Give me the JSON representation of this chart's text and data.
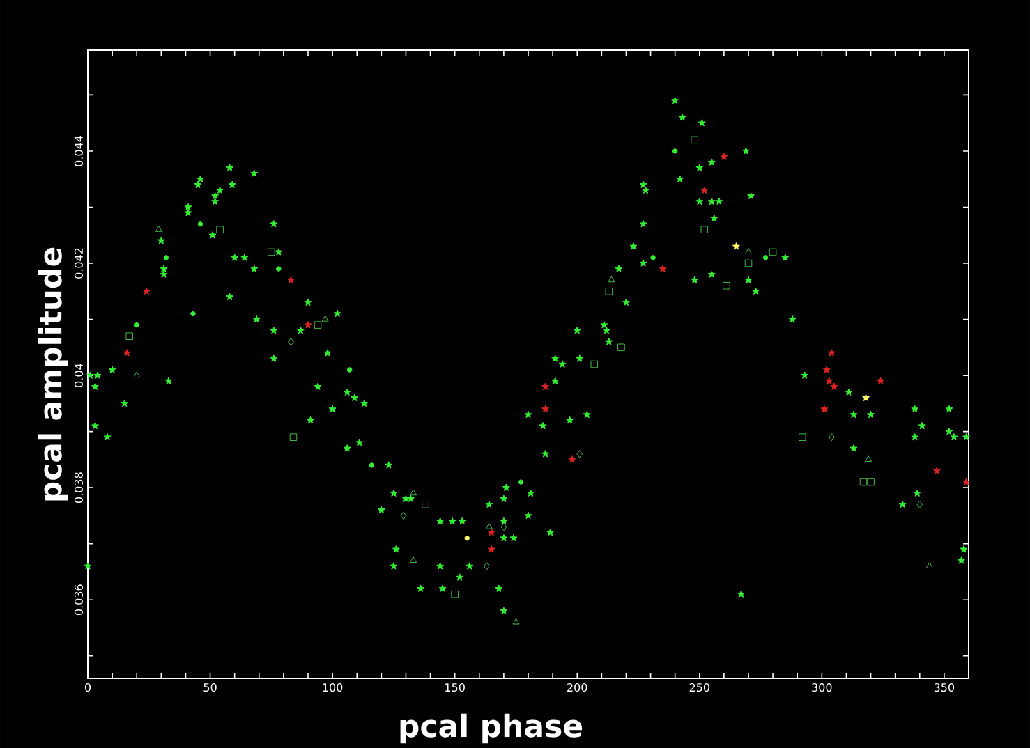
{
  "chart_data": {
    "type": "scatter",
    "xlabel": "pcal phase",
    "ylabel": "pcal amplitude",
    "xlim": [
      0,
      360
    ],
    "ylim": [
      0.0346,
      0.0458
    ],
    "xticks": [
      0,
      {
        "value": 10,
        "label": null
      },
      {
        "value": 20,
        "label": null
      },
      {
        "value": 30,
        "label": null
      },
      {
        "value": 40,
        "label": null
      },
      50,
      {
        "value": 60,
        "label": null
      },
      {
        "value": 70,
        "label": null
      },
      {
        "value": 80,
        "label": null
      },
      {
        "value": 90,
        "label": null
      },
      100,
      {
        "value": 110,
        "label": null
      },
      {
        "value": 120,
        "label": null
      },
      {
        "value": 130,
        "label": null
      },
      {
        "value": 140,
        "label": null
      },
      150,
      {
        "value": 160,
        "label": null
      },
      {
        "value": 170,
        "label": null
      },
      {
        "value": 180,
        "label": null
      },
      {
        "value": 190,
        "label": null
      },
      200,
      {
        "value": 210,
        "label": null
      },
      {
        "value": 220,
        "label": null
      },
      {
        "value": 230,
        "label": null
      },
      {
        "value": 240,
        "label": null
      },
      250,
      {
        "value": 260,
        "label": null
      },
      {
        "value": 270,
        "label": null
      },
      {
        "value": 280,
        "label": null
      },
      {
        "value": 290,
        "label": null
      },
      300,
      {
        "value": 310,
        "label": null
      },
      {
        "value": 320,
        "label": null
      },
      {
        "value": 330,
        "label": null
      },
      {
        "value": 340,
        "label": null
      },
      350
    ],
    "yticks": [
      {
        "value": 0.035,
        "label": null
      },
      0.036,
      {
        "value": 0.037,
        "label": null
      },
      0.038,
      {
        "value": 0.039,
        "label": null
      },
      0.04,
      {
        "value": 0.041,
        "label": null
      },
      0.042,
      {
        "value": 0.043,
        "label": null
      },
      0.044,
      {
        "value": 0.045,
        "label": null
      }
    ],
    "series": [
      {
        "marker": "star",
        "color": "#33ee33",
        "x": [
          0,
          1,
          4,
          10,
          3,
          15,
          3,
          8,
          33,
          30,
          31,
          31,
          41,
          41,
          45,
          46,
          51,
          52,
          52,
          54,
          58,
          59,
          58,
          60,
          64,
          68,
          68,
          69,
          76,
          78,
          76,
          76,
          87,
          90,
          102,
          98,
          94,
          100,
          106,
          91,
          113,
          106,
          111,
          109,
          123,
          125,
          130,
          132,
          120,
          126,
          125,
          136,
          144,
          149,
          153,
          144,
          145,
          152,
          156,
          168,
          170,
          164,
          170,
          171,
          170,
          170,
          174,
          180,
          181,
          189,
          180,
          186,
          187,
          197,
          204,
          191,
          191,
          194,
          201,
          200,
          211,
          212,
          213,
          220,
          217,
          227,
          223,
          227,
          227,
          228,
          240,
          243,
          251,
          269,
          255,
          250,
          242,
          250,
          255,
          258,
          271,
          256,
          285,
          248,
          255,
          273,
          270,
          288,
          267,
          293,
          311,
          313,
          320,
          338,
          352,
          341,
          338,
          352,
          354,
          359,
          313,
          339,
          333,
          358,
          357
        ],
        "values": [
          0.0366,
          0.04,
          0.04,
          0.0401,
          0.0398,
          0.0395,
          0.0391,
          0.0389,
          0.0399,
          0.0424,
          0.0419,
          0.0418,
          0.043,
          0.0429,
          0.0434,
          0.0435,
          0.0425,
          0.0431,
          0.0432,
          0.0433,
          0.0437,
          0.0434,
          0.0414,
          0.0421,
          0.0421,
          0.0436,
          0.0419,
          0.041,
          0.0427,
          0.0422,
          0.0403,
          0.0408,
          0.0408,
          0.0413,
          0.0411,
          0.0404,
          0.0398,
          0.0394,
          0.0397,
          0.0392,
          0.0395,
          0.0387,
          0.0388,
          0.0396,
          0.0384,
          0.0379,
          0.0378,
          0.0378,
          0.0376,
          0.0369,
          0.0366,
          0.0362,
          0.0374,
          0.0374,
          0.0374,
          0.0366,
          0.0362,
          0.0364,
          0.0366,
          0.0362,
          0.0358,
          0.0377,
          0.0378,
          0.038,
          0.0374,
          0.0371,
          0.0371,
          0.0375,
          0.0379,
          0.0372,
          0.0393,
          0.0391,
          0.0386,
          0.0392,
          0.0393,
          0.0399,
          0.0403,
          0.0402,
          0.0403,
          0.0408,
          0.0409,
          0.0408,
          0.0406,
          0.0413,
          0.0419,
          0.042,
          0.0423,
          0.0427,
          0.0434,
          0.0433,
          0.0449,
          0.0446,
          0.0445,
          0.044,
          0.0438,
          0.0437,
          0.0435,
          0.0431,
          0.0431,
          0.0431,
          0.0432,
          0.0428,
          0.0421,
          0.0417,
          0.0418,
          0.0415,
          0.0417,
          0.041,
          0.0361,
          0.04,
          0.0397,
          0.0393,
          0.0393,
          0.0394,
          0.0394,
          0.0391,
          0.0389,
          0.039,
          0.0389,
          0.0389,
          0.0387,
          0.0379,
          0.0377,
          0.0369,
          0.0367
        ]
      },
      {
        "marker": "circle",
        "color": "#33ee33",
        "x": [
          32,
          46,
          43,
          20,
          107,
          116,
          177,
          240,
          78,
          231,
          277
        ],
        "values": [
          0.0421,
          0.0427,
          0.0411,
          0.0409,
          0.0401,
          0.0384,
          0.0381,
          0.044,
          0.0419,
          0.0421,
          0.0421
        ]
      },
      {
        "marker": "square",
        "color": "#44bb44",
        "x": [
          54,
          75,
          94,
          17,
          84,
          138,
          150,
          207,
          218,
          213,
          248,
          252,
          270,
          280,
          261,
          317,
          320,
          292
        ],
        "values": [
          0.0426,
          0.0422,
          0.0409,
          0.0407,
          0.0389,
          0.0377,
          0.0361,
          0.0402,
          0.0405,
          0.0415,
          0.0442,
          0.0426,
          0.042,
          0.0422,
          0.0416,
          0.0381,
          0.0381,
          0.0389
        ]
      },
      {
        "marker": "triangle",
        "color": "#44bb44",
        "x": [
          29,
          97,
          20,
          133,
          133,
          164,
          175,
          214,
          270,
          319,
          344
        ],
        "values": [
          0.0426,
          0.041,
          0.04,
          0.0379,
          0.0367,
          0.0373,
          0.0356,
          0.0417,
          0.0422,
          0.0385,
          0.0366
        ]
      },
      {
        "marker": "diamond",
        "color": "#44bb44",
        "x": [
          83,
          129,
          163,
          170,
          201,
          304,
          340
        ],
        "values": [
          0.0406,
          0.0375,
          0.0366,
          0.0373,
          0.0386,
          0.0389,
          0.0377
        ]
      },
      {
        "marker": "star",
        "color": "#dd2222",
        "x": [
          24,
          16,
          83,
          90,
          187,
          187,
          198,
          165,
          165,
          235,
          260,
          252,
          304,
          302,
          303,
          305,
          324,
          301,
          347,
          359
        ],
        "values": [
          0.0415,
          0.0404,
          0.0417,
          0.0409,
          0.0398,
          0.0394,
          0.0385,
          0.0372,
          0.0369,
          0.0419,
          0.0439,
          0.0433,
          0.0404,
          0.0401,
          0.0399,
          0.0398,
          0.0399,
          0.0394,
          0.0383,
          0.0381
        ]
      },
      {
        "marker": "star",
        "color": "#ffff66",
        "x": [
          265,
          318
        ],
        "values": [
          0.0423,
          0.0396
        ]
      },
      {
        "marker": "circle",
        "color": "#ffff66",
        "x": [
          155
        ],
        "values": [
          0.0371
        ]
      }
    ]
  }
}
